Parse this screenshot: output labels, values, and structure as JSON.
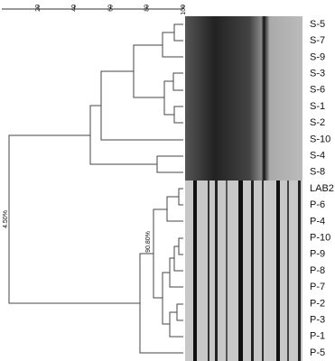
{
  "scale": {
    "ticks": [
      20,
      40,
      60,
      80,
      100
    ]
  },
  "annotations": {
    "root": "4.50%",
    "p_cluster": "90.80%"
  },
  "lanes": [
    "S-5",
    "S-7",
    "S-9",
    "S-3",
    "S-6",
    "S-1",
    "S-2",
    "S-10",
    "S-4",
    "S-8",
    "LAB2",
    "P-6",
    "P-4",
    "P-10",
    "P-9",
    "P-8",
    "P-7",
    "P-2",
    "P-3",
    "P-1",
    "P-5"
  ]
}
